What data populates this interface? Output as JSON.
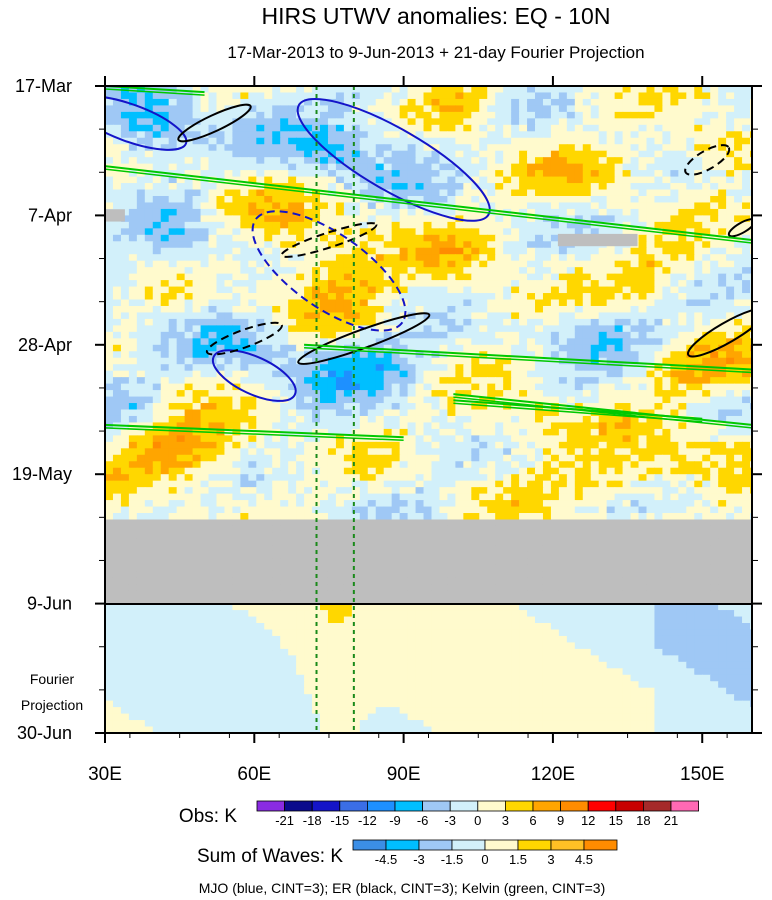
{
  "chart_data": {
    "type": "heatmap",
    "title": "HIRS UTWV anomalies: EQ - 10N",
    "subtitle": "17-Mar-2013 to 9-Jun-2013 + 21-day Fourier Projection",
    "x_ticks": [
      "30E",
      "60E",
      "90E",
      "120E",
      "150E"
    ],
    "x_tick_values": [
      30,
      60,
      90,
      120,
      150
    ],
    "xlim": [
      30,
      160
    ],
    "y_ticks": [
      "17-Mar",
      "7-Apr",
      "28-Apr",
      "19-May",
      "9-Jun",
      "30-Jun"
    ],
    "y_tick_days": [
      0,
      21,
      42,
      63,
      84,
      105
    ],
    "observation_end": "9-Jun",
    "projection_label_line1": "Fourier",
    "projection_label_line2": "Projection",
    "reference_longitudes": [
      72.5,
      80
    ],
    "missing_data_color": "#bebebe",
    "obs_colorbar": {
      "label": "Obs: K",
      "levels": [
        "-21",
        "-18",
        "-15",
        "-12",
        "-9",
        "-6",
        "-3",
        "0",
        "3",
        "6",
        "9",
        "12",
        "15",
        "18",
        "21"
      ],
      "colors": [
        "#8a2be2",
        "#0a0a8c",
        "#1414c8",
        "#3b6ee6",
        "#1e90ff",
        "#00bfff",
        "#9fc8f5",
        "#d2f0fa",
        "#fffacd",
        "#ffd700",
        "#ffa500",
        "#ff8c00",
        "#ff0000",
        "#c80000",
        "#a52a2a",
        "#ff69b4"
      ]
    },
    "waves_colorbar": {
      "label": "Sum of Waves: K",
      "levels": [
        "-4.5",
        "-3",
        "-1.5",
        "0",
        "1.5",
        "3",
        "4.5"
      ],
      "colors": [
        "#3b8ee6",
        "#00bfff",
        "#9fc8f5",
        "#d2f0fa",
        "#fffacd",
        "#ffd700",
        "#ffc125",
        "#ff8c00"
      ]
    },
    "wave_legend": "MJO (blue, CINT=3); ER (black, CINT=3); Kelvin (green, CINT=3)",
    "wave_colors": {
      "mjo": "#1414c8",
      "er": "#000000",
      "kelvin": "#00c800"
    }
  }
}
